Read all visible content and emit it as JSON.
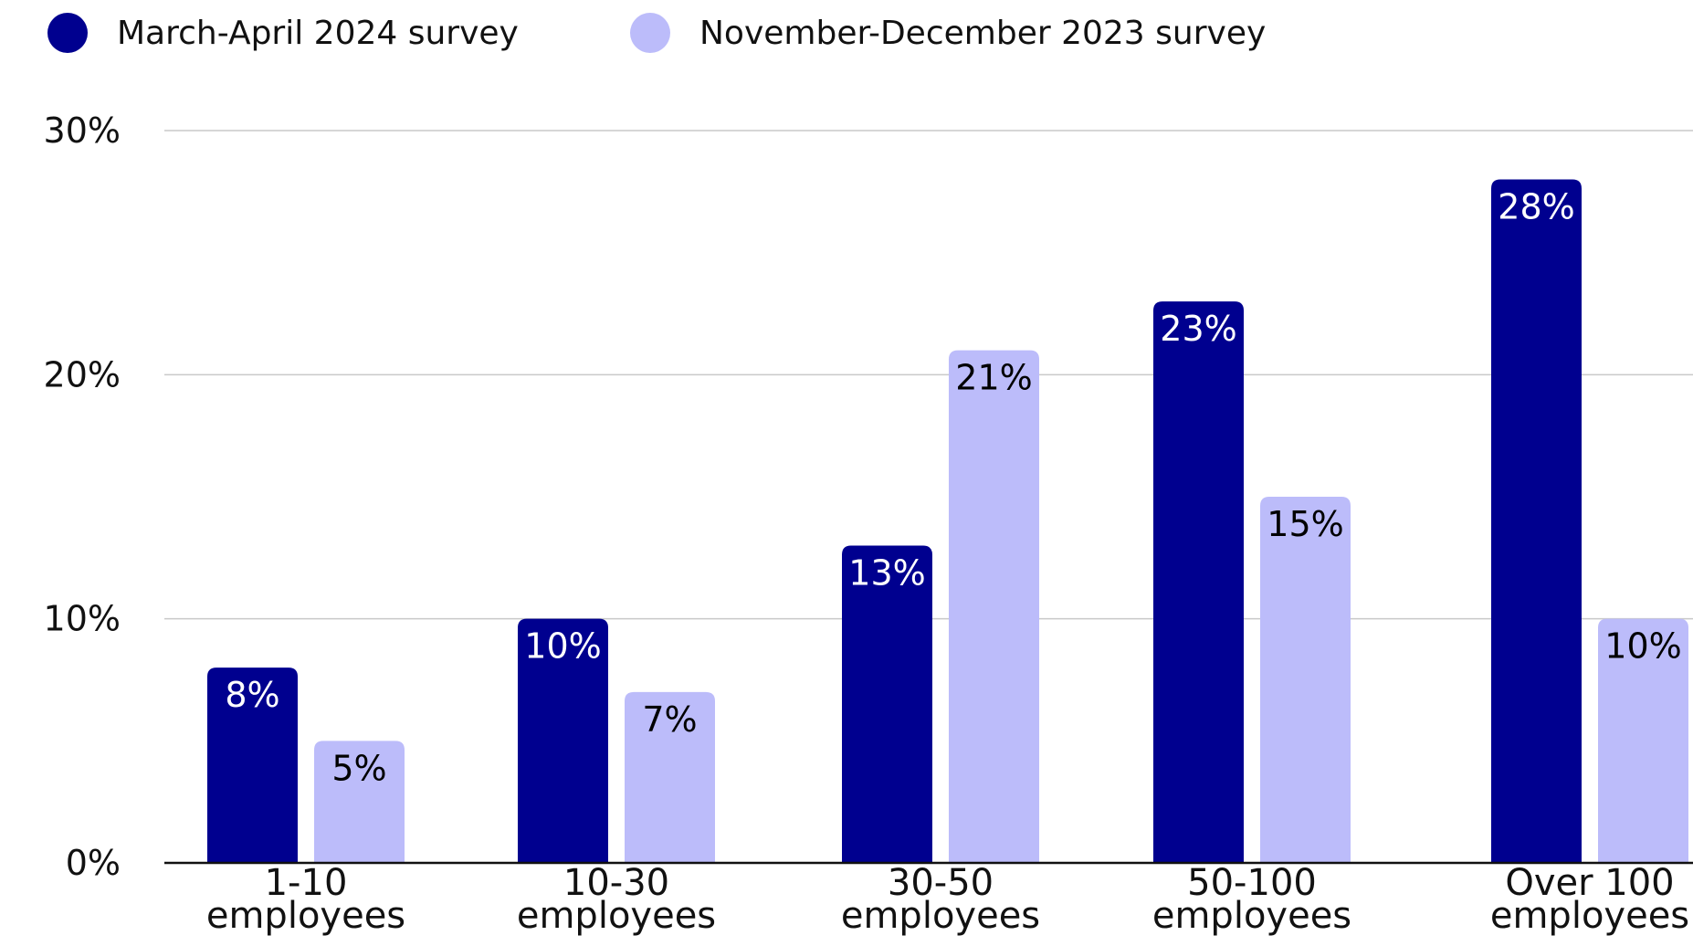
{
  "chart_data": {
    "type": "bar",
    "categories": [
      [
        "1-10",
        "employees"
      ],
      [
        "10-30",
        "employees"
      ],
      [
        "30-50",
        "employees"
      ],
      [
        "50-100",
        "employees"
      ],
      [
        "Over 100",
        "employees"
      ]
    ],
    "series": [
      {
        "name": "March-April 2024 survey",
        "values": [
          8,
          10,
          13,
          23,
          28
        ],
        "labels": [
          "8%",
          "10%",
          "13%",
          "23%",
          "28%"
        ],
        "color": "#00008f",
        "label_color": "#ffffff"
      },
      {
        "name": "November-December 2023 survey",
        "values": [
          5,
          7,
          21,
          15,
          10
        ],
        "labels": [
          "5%",
          "7%",
          "21%",
          "15%",
          "10%"
        ],
        "color": "#bcbcfa",
        "label_color": "#000000"
      }
    ],
    "ylim": [
      0,
      30
    ],
    "yticks": [
      0,
      10,
      20,
      30
    ],
    "ytick_labels": [
      "0%",
      "10%",
      "20%",
      "30%"
    ],
    "grid": true,
    "legend_position": "top-left",
    "title": "",
    "xlabel": "",
    "ylabel": ""
  }
}
